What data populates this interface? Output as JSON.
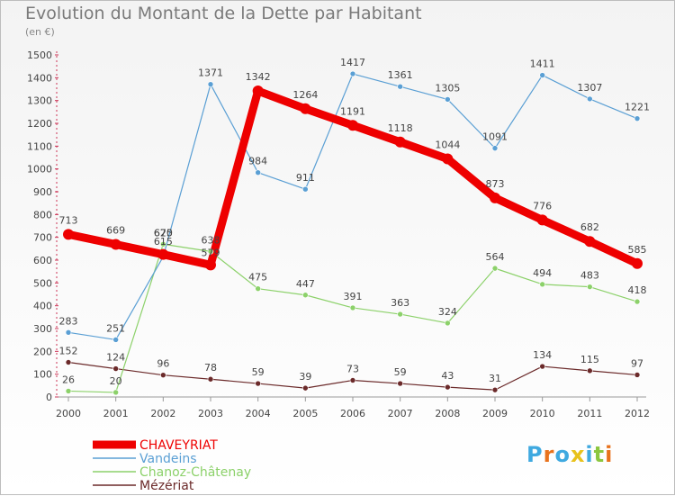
{
  "title": "Evolution du Montant de la Dette par Habitant",
  "subtitle": "(en €)",
  "logo": {
    "text": "Proxiti",
    "letters": [
      {
        "ch": "P",
        "color": "#3fa9e0"
      },
      {
        "ch": "r",
        "color": "#e8721c"
      },
      {
        "ch": "o",
        "color": "#3fa9e0"
      },
      {
        "ch": "x",
        "color": "#e8c21c"
      },
      {
        "ch": "i",
        "color": "#3fa9e0"
      },
      {
        "ch": "t",
        "color": "#8cc63f"
      },
      {
        "ch": "i",
        "color": "#e8721c"
      }
    ]
  },
  "chart_data": {
    "type": "line",
    "title": "Evolution du Montant de la Dette par Habitant",
    "subtitle": "(en €)",
    "xlabel": "",
    "ylabel": "",
    "x": [
      "2000",
      "2001",
      "2002",
      "2003",
      "2004",
      "2005",
      "2006",
      "2007",
      "2008",
      "2009",
      "2010",
      "2011",
      "2012"
    ],
    "ylim": [
      0,
      1500
    ],
    "yticks": [
      0,
      100,
      200,
      300,
      400,
      500,
      600,
      700,
      800,
      900,
      1000,
      1100,
      1200,
      1300,
      1400,
      1500
    ],
    "grid": false,
    "legend": "bottom-left",
    "series": [
      {
        "name": "CHAVEYRIAT",
        "color": "#ee0000",
        "values": [
          713,
          669,
          625,
          579,
          1342,
          1264,
          1191,
          1118,
          1044,
          873,
          776,
          682,
          585
        ],
        "labels": [
          "713",
          "669",
          "",
          "",
          "1342",
          "1264",
          "1191",
          "1118",
          "1044",
          "873",
          "776",
          "682",
          "585"
        ]
      },
      {
        "name": "Vandeins",
        "color": "#5a9fd4",
        "values": [
          283,
          251,
          615,
          1371,
          984,
          911,
          1417,
          1361,
          1305,
          1091,
          1411,
          1307,
          1221
        ],
        "labels": [
          "283",
          "251",
          "",
          "1371",
          "984",
          "911",
          "1417",
          "1361",
          "1305",
          "1091",
          "1411",
          "1307",
          "1221"
        ]
      },
      {
        "name": "Chanoz-Châtenay",
        "color": "#8cd16a",
        "values": [
          26,
          20,
          670,
          638,
          475,
          447,
          391,
          363,
          324,
          564,
          494,
          483,
          418
        ],
        "labels": [
          "26",
          "20",
          "670",
          "638",
          "475",
          "447",
          "391",
          "363",
          "324",
          "564",
          "494",
          "483",
          "418"
        ]
      },
      {
        "name": "Mézériat",
        "color": "#6b2a2a",
        "values": [
          152,
          124,
          96,
          78,
          59,
          39,
          73,
          59,
          43,
          31,
          134,
          115,
          97
        ],
        "labels": [
          "152",
          "124",
          "96",
          "78",
          "59",
          "39",
          "73",
          "59",
          "43",
          "31",
          "134",
          "115",
          "97"
        ]
      }
    ],
    "overlap_labels": [
      "625",
      "615",
      "579"
    ]
  }
}
